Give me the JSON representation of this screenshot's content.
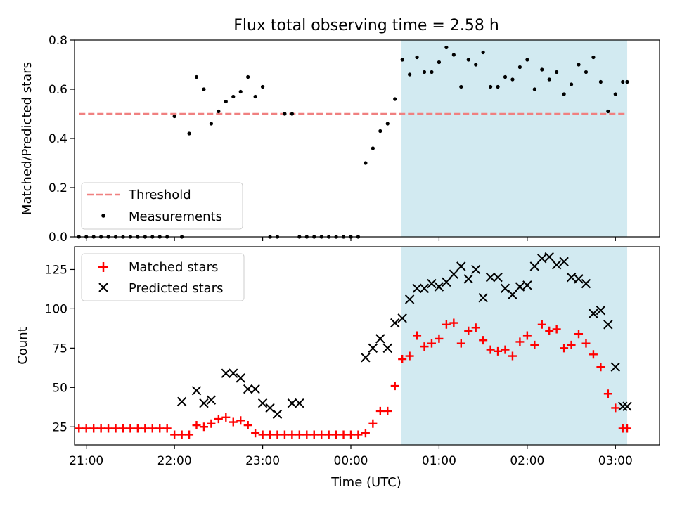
{
  "title": "Flux total observing time = 2.58 h",
  "colors": {
    "threshold": "#f08080",
    "measurement": "#000000",
    "matched": "#ff0000",
    "predicted": "#000000",
    "shade": "#add8e6"
  },
  "chart_data": [
    {
      "type": "scatter",
      "ylabel": "Matched/Predicted stars",
      "ylim": [
        0,
        0.8
      ],
      "yticks": [
        0,
        0.2,
        0.4,
        0.6,
        0.8
      ],
      "ytick_labels": [
        "0.0",
        "0.2",
        "0.4",
        "0.6",
        "0.8"
      ],
      "xlim": [
        "20:52",
        "03:30"
      ],
      "xticks": [
        "21:00",
        "22:00",
        "23:00",
        "00:00",
        "01:00",
        "02:00",
        "03:00"
      ],
      "shaded_span": [
        "00:34",
        "03:08"
      ],
      "legend": {
        "position": "lower-left",
        "entries": [
          "Threshold",
          "Measurements"
        ]
      },
      "threshold": {
        "name": "Threshold",
        "y": 0.5,
        "x_range": [
          "20:55",
          "03:08"
        ]
      },
      "series": [
        {
          "name": "Measurements",
          "x": [
            "20:55",
            "21:00",
            "21:05",
            "21:10",
            "21:15",
            "21:20",
            "21:25",
            "21:30",
            "21:35",
            "21:40",
            "21:45",
            "21:50",
            "21:55",
            "22:00",
            "22:05",
            "22:10",
            "22:15",
            "22:20",
            "22:25",
            "22:30",
            "22:35",
            "22:40",
            "22:45",
            "22:50",
            "22:55",
            "23:00",
            "23:05",
            "23:10",
            "23:15",
            "23:20",
            "23:25",
            "23:30",
            "23:35",
            "23:40",
            "23:45",
            "23:50",
            "23:55",
            "00:00",
            "00:05",
            "00:10",
            "00:15",
            "00:20",
            "00:25",
            "00:30",
            "00:35",
            "00:40",
            "00:45",
            "00:50",
            "00:55",
            "01:00",
            "01:05",
            "01:10",
            "01:15",
            "01:20",
            "01:25",
            "01:30",
            "01:35",
            "01:40",
            "01:45",
            "01:50",
            "01:55",
            "02:00",
            "02:05",
            "02:10",
            "02:15",
            "02:20",
            "02:25",
            "02:30",
            "02:35",
            "02:40",
            "02:45",
            "02:50",
            "02:55",
            "03:00",
            "03:05",
            "03:08"
          ],
          "y": [
            0,
            0,
            0,
            0,
            0,
            0,
            0,
            0,
            0,
            0,
            0,
            0,
            0,
            0.49,
            0,
            0.42,
            0.65,
            0.6,
            0.46,
            0.51,
            0.55,
            0.57,
            0.59,
            0.65,
            0.57,
            0.61,
            0,
            0,
            0.5,
            0.5,
            0,
            0,
            0,
            0,
            0,
            0,
            0,
            0,
            0,
            0.3,
            0.36,
            0.43,
            0.46,
            0.56,
            0.72,
            0.66,
            0.73,
            0.67,
            0.67,
            0.71,
            0.77,
            0.74,
            0.61,
            0.72,
            0.7,
            0.75,
            0.61,
            0.61,
            0.65,
            0.64,
            0.69,
            0.72,
            0.6,
            0.68,
            0.64,
            0.67,
            0.58,
            0.62,
            0.7,
            0.67,
            0.73,
            0.63,
            0.51,
            0.58,
            0.63,
            0.63
          ]
        }
      ]
    },
    {
      "type": "scatter",
      "ylabel": "Count",
      "xlabel": "Time (UTC)",
      "ylim": [
        13.5,
        139.5
      ],
      "yticks": [
        25,
        50,
        75,
        100,
        125
      ],
      "ytick_labels": [
        "25",
        "50",
        "75",
        "100",
        "125"
      ],
      "xlim": [
        "20:52",
        "03:30"
      ],
      "xticks": [
        "21:00",
        "22:00",
        "23:00",
        "00:00",
        "01:00",
        "02:00",
        "03:00"
      ],
      "shaded_span": [
        "00:34",
        "03:08"
      ],
      "legend": {
        "position": "upper-left",
        "entries": [
          "Matched stars",
          "Predicted stars"
        ]
      },
      "series": [
        {
          "name": "Matched stars",
          "x": [
            "20:55",
            "21:00",
            "21:05",
            "21:10",
            "21:15",
            "21:20",
            "21:25",
            "21:30",
            "21:35",
            "21:40",
            "21:45",
            "21:50",
            "21:55",
            "22:00",
            "22:05",
            "22:10",
            "22:15",
            "22:20",
            "22:25",
            "22:30",
            "22:35",
            "22:40",
            "22:45",
            "22:50",
            "22:55",
            "23:00",
            "23:05",
            "23:10",
            "23:15",
            "23:20",
            "23:25",
            "23:30",
            "23:35",
            "23:40",
            "23:45",
            "23:50",
            "23:55",
            "00:00",
            "00:05",
            "00:10",
            "00:15",
            "00:20",
            "00:25",
            "00:30",
            "00:35",
            "00:40",
            "00:45",
            "00:50",
            "00:55",
            "01:00",
            "01:05",
            "01:10",
            "01:15",
            "01:20",
            "01:25",
            "01:30",
            "01:35",
            "01:40",
            "01:45",
            "01:50",
            "01:55",
            "02:00",
            "02:05",
            "02:10",
            "02:15",
            "02:20",
            "02:25",
            "02:30",
            "02:35",
            "02:40",
            "02:45",
            "02:50",
            "02:55",
            "03:00",
            "03:05",
            "03:08"
          ],
          "y": [
            24,
            24,
            24,
            24,
            24,
            24,
            24,
            24,
            24,
            24,
            24,
            24,
            24,
            20,
            20,
            20,
            26,
            25,
            27,
            30,
            31,
            28,
            29,
            26,
            21,
            20,
            20,
            20,
            20,
            20,
            20,
            20,
            20,
            20,
            20,
            20,
            20,
            20,
            20,
            21,
            27,
            35,
            35,
            51,
            68,
            70,
            83,
            76,
            78,
            81,
            90,
            91,
            78,
            86,
            88,
            80,
            74,
            73,
            74,
            70,
            79,
            83,
            77,
            90,
            86,
            87,
            75,
            77,
            84,
            78,
            71,
            63,
            46,
            37,
            24,
            24
          ]
        },
        {
          "name": "Predicted stars",
          "x": [
            "22:05",
            "22:15",
            "22:20",
            "22:25",
            "22:35",
            "22:40",
            "22:45",
            "22:50",
            "22:55",
            "23:00",
            "23:05",
            "23:10",
            "23:20",
            "23:25",
            "00:10",
            "00:15",
            "00:20",
            "00:25",
            "00:30",
            "00:35",
            "00:40",
            "00:45",
            "00:50",
            "00:55",
            "01:00",
            "01:05",
            "01:10",
            "01:15",
            "01:20",
            "01:25",
            "01:30",
            "01:35",
            "01:40",
            "01:45",
            "01:50",
            "01:55",
            "02:00",
            "02:05",
            "02:10",
            "02:15",
            "02:20",
            "02:25",
            "02:30",
            "02:35",
            "02:40",
            "02:45",
            "02:50",
            "02:55",
            "03:00",
            "03:05",
            "03:08"
          ],
          "y": [
            41,
            48,
            40,
            42,
            59,
            59,
            56,
            49,
            49,
            40,
            37,
            33,
            40,
            40,
            69,
            75,
            81,
            75,
            91,
            94,
            106,
            113,
            113,
            116,
            114,
            117,
            122,
            127,
            119,
            125,
            107,
            120,
            120,
            113,
            109,
            114,
            115,
            127,
            132,
            133,
            128,
            130,
            120,
            119,
            116,
            97,
            99,
            90,
            63,
            38,
            38
          ]
        }
      ]
    }
  ]
}
